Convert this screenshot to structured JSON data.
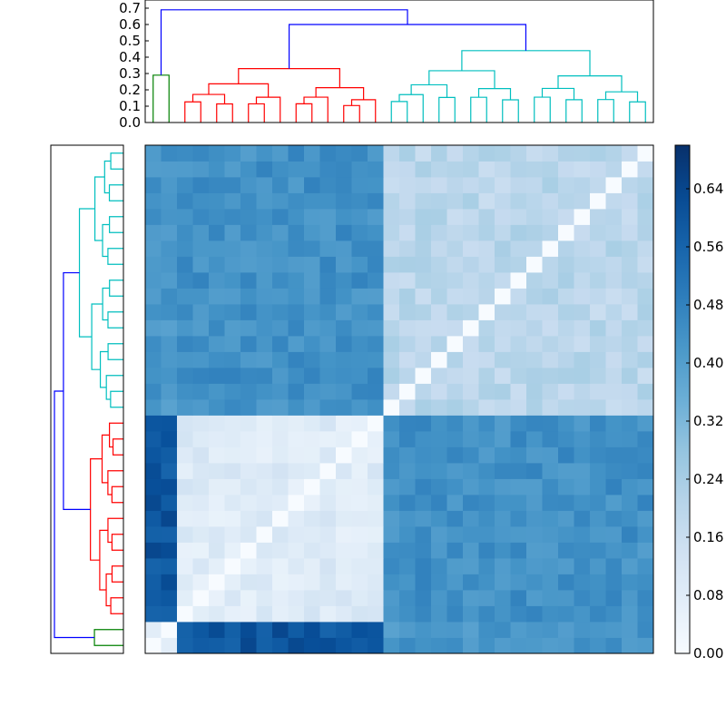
{
  "chart_data": {
    "type": "heatmap",
    "title": "",
    "xlabel": "",
    "ylabel": "",
    "n": 32,
    "colormap": "Blues",
    "colorbar": {
      "vmin": 0.0,
      "vmax": 0.7,
      "ticks": [
        "0.00",
        "0.08",
        "0.16",
        "0.24",
        "0.32",
        "0.40",
        "0.48",
        "0.56",
        "0.64"
      ]
    },
    "top_dendrogram": {
      "ylim": [
        0,
        0.75
      ],
      "y_ticks": [
        "0.0",
        "0.1",
        "0.2",
        "0.3",
        "0.4",
        "0.5",
        "0.6",
        "0.7"
      ]
    },
    "cluster_colors": {
      "root": "#0000ff",
      "green": "#008000",
      "red": "#ff0000",
      "cyan": "#00bfbf"
    },
    "groups": [
      "green",
      "green",
      "red",
      "red",
      "red",
      "red",
      "red",
      "red",
      "red",
      "red",
      "red",
      "red",
      "red",
      "red",
      "red",
      "cyan",
      "cyan",
      "cyan",
      "cyan",
      "cyan",
      "cyan",
      "cyan",
      "cyan",
      "cyan",
      "cyan",
      "cyan",
      "cyan",
      "cyan",
      "cyan",
      "cyan",
      "cyan",
      "cyan"
    ],
    "merge_heights": {
      "root": 0.69,
      "red_vs_cyan": 0.6,
      "green": 0.29,
      "red_top": 0.33,
      "cyan_top": 0.44
    },
    "block_means": {
      "green_green": 0.1,
      "green_red": 0.6,
      "green_cyan": 0.42,
      "red_red": 0.09,
      "red_cyan": 0.44,
      "cyan_cyan": 0.2
    }
  }
}
